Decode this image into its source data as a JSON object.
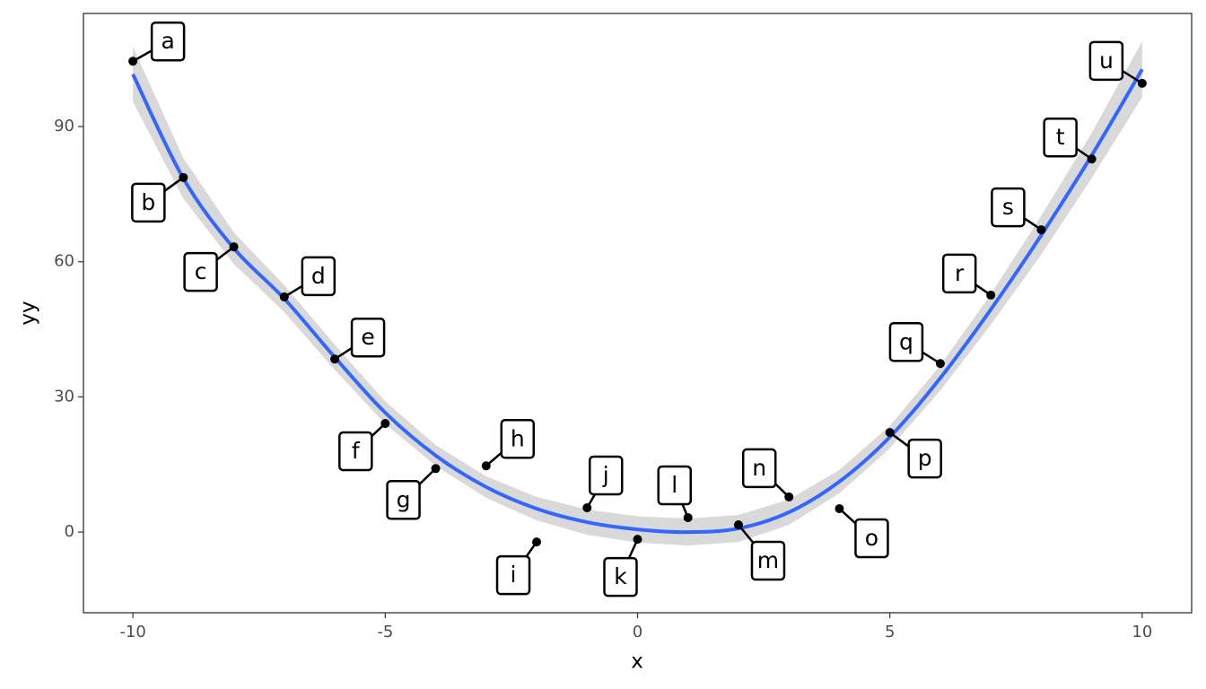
{
  "chart_data": {
    "type": "scatter",
    "x_label": "x",
    "y_label": "yy",
    "x": [
      -10,
      -9,
      -8,
      -7,
      -6,
      -5,
      -4,
      -3,
      -2,
      -1,
      0,
      1,
      2,
      3,
      4,
      5,
      6,
      7,
      8,
      9,
      10
    ],
    "values": [
      104.5,
      78.7,
      63.3,
      52.2,
      38.4,
      24.1,
      14.1,
      14.7,
      -2.2,
      5.4,
      -1.6,
      3.2,
      1.6,
      7.8,
      5.2,
      22.1,
      37.4,
      52.6,
      67.1,
      82.8,
      99.6
    ],
    "labels": [
      "a",
      "b",
      "c",
      "d",
      "e",
      "f",
      "g",
      "h",
      "i",
      "j",
      "k",
      "l",
      "m",
      "n",
      "o",
      "p",
      "q",
      "r",
      "s",
      "t",
      "u"
    ],
    "point_color": "#000000",
    "smooth": {
      "color": "#3366ff",
      "band_color": "#d9d9d9",
      "values": [
        101.6,
        78.5,
        63,
        51.8,
        38.8,
        26.5,
        17,
        10,
        5.2,
        2.2,
        0.6,
        0,
        0.8,
        4.4,
        11.2,
        21.1,
        34.2,
        49.4,
        65.9,
        83.6,
        102.7
      ],
      "lower": [
        95.5,
        74,
        59.5,
        48.8,
        36,
        24,
        14.7,
        7.6,
        2.6,
        -0.6,
        -2.3,
        -3,
        -2.2,
        1.6,
        8.6,
        18.6,
        31.4,
        46,
        61.6,
        78.6,
        96.5
      ],
      "upper": [
        107.7,
        83,
        66.5,
        54.8,
        41.6,
        29,
        19.3,
        12.4,
        7.8,
        5,
        3.5,
        3,
        3.8,
        7.2,
        13.8,
        23.6,
        37,
        52.8,
        70.2,
        88.6,
        108.9
      ]
    },
    "xlim": [
      -10.98,
      10.98
    ],
    "ylim": [
      -17.9,
      115.1
    ],
    "xticks": [
      -10,
      -5,
      0,
      5,
      10
    ],
    "yticks": [
      0,
      30,
      60,
      90
    ]
  }
}
